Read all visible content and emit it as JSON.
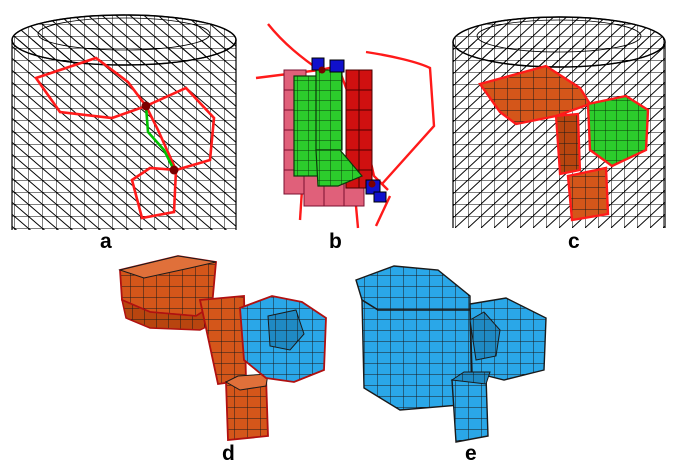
{
  "figure": {
    "panels": [
      {
        "id": "a",
        "label": "a"
      },
      {
        "id": "b",
        "label": "b"
      },
      {
        "id": "c",
        "label": "c"
      },
      {
        "id": "d",
        "label": "d"
      },
      {
        "id": "e",
        "label": "e"
      }
    ]
  },
  "colors": {
    "wireframe": "#000000",
    "boundary_red": "#ff1a1a",
    "seam_green": "#00c000",
    "block_green": "#33e633",
    "block_red": "#d01010",
    "block_pink": "#e0607a",
    "block_blue": "#1010cc",
    "mesh_orange": "#d4561a",
    "mesh_blue": "#2aa7e8",
    "mesh_edge": "#1a1a1a"
  },
  "icons": {
    "node": "dark-red-dot-icon"
  }
}
